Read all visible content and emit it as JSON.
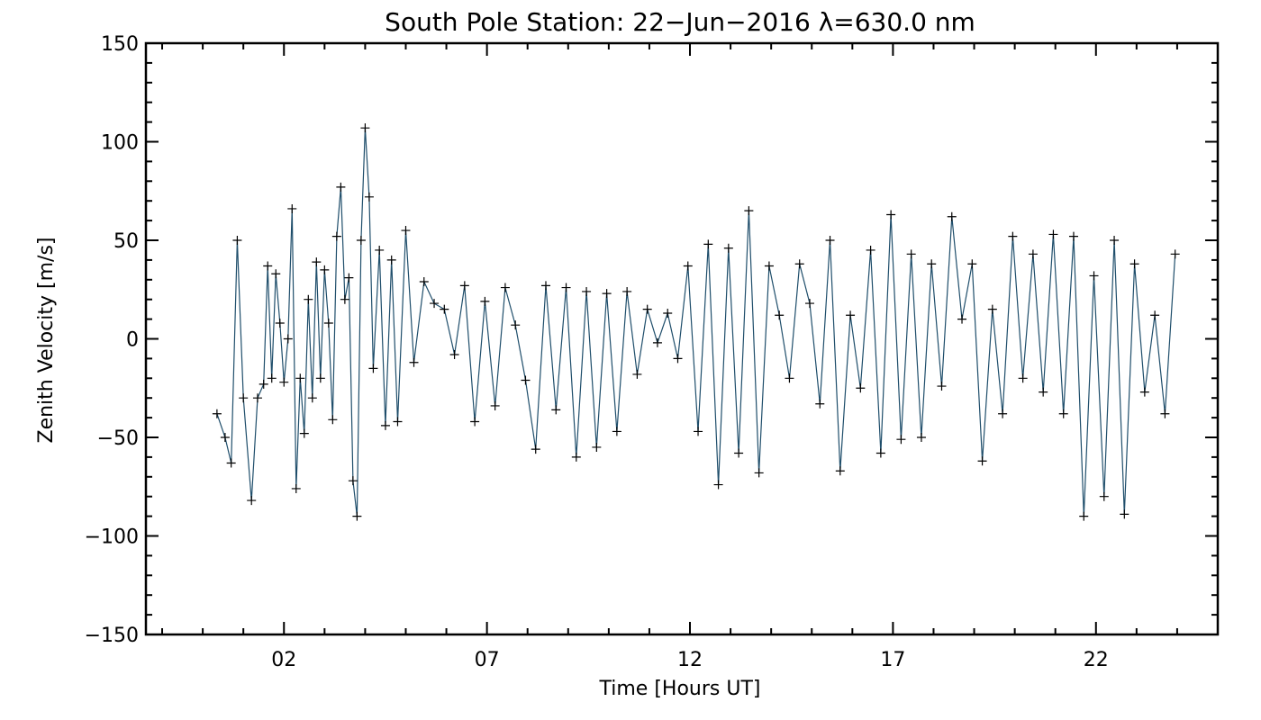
{
  "chart_data": {
    "type": "line",
    "title": "South Pole Station: 22−Jun−2016 λ=630.0 nm",
    "xlabel": "Time [Hours UT]",
    "ylabel": "Zenith Velocity [m/s]",
    "xlim": [
      -1.4,
      25.0
    ],
    "ylim": [
      -150,
      150
    ],
    "x_ticks": [
      2,
      7,
      12,
      17,
      22
    ],
    "x_tick_labels": [
      "02",
      "07",
      "12",
      "17",
      "22"
    ],
    "y_ticks": [
      150,
      100,
      50,
      0,
      -50,
      -100,
      -150
    ],
    "y_tick_labels": [
      "150",
      "100",
      "50",
      "0",
      "−50",
      "−100",
      "−150"
    ],
    "grid": false,
    "marker": "+",
    "colors": {
      "line": "#1f4e6b",
      "marker": "#000000"
    },
    "series": [
      {
        "x": [
          0.35,
          0.55,
          0.7,
          0.85,
          1.0,
          1.2,
          1.35,
          1.5,
          1.6,
          1.7,
          1.8,
          1.9,
          2.0,
          2.1,
          2.2,
          2.3,
          2.4,
          2.5,
          2.6,
          2.7,
          2.8,
          2.9,
          3.0,
          3.1,
          3.2,
          3.3,
          3.4,
          3.5,
          3.6,
          3.7,
          3.8,
          3.9,
          4.0,
          4.1,
          4.2,
          4.35,
          4.5,
          4.65,
          4.8,
          5.0,
          5.2,
          5.45,
          5.7,
          5.95,
          6.2,
          6.45,
          6.7,
          6.95,
          7.2,
          7.45,
          7.7,
          7.95,
          8.2,
          8.45,
          8.7,
          8.95,
          9.2,
          9.45,
          9.7,
          9.95,
          10.2,
          10.45,
          10.7,
          10.95,
          11.2,
          11.45,
          11.7,
          11.95,
          12.2,
          12.45,
          12.7,
          12.95,
          13.2,
          13.45,
          13.7,
          13.95,
          14.2,
          14.45,
          14.7,
          14.95,
          15.2,
          15.45,
          15.7,
          15.95,
          16.2,
          16.45,
          16.7,
          16.95,
          17.2,
          17.45,
          17.7,
          17.95,
          18.2,
          18.45,
          18.7,
          18.95,
          19.2,
          19.45,
          19.7,
          19.95,
          20.2,
          20.45,
          20.7,
          20.95,
          21.2,
          21.45,
          21.7,
          21.95,
          22.2,
          22.45,
          22.7,
          22.95,
          23.2,
          23.45,
          23.7,
          23.95
        ],
        "values": [
          -38,
          -50,
          -63,
          50,
          -30,
          -82,
          -30,
          -23,
          37,
          -20,
          33,
          8,
          -22,
          0,
          66,
          -76,
          -20,
          -48,
          20,
          -30,
          39,
          -20,
          35,
          8,
          -41,
          52,
          77,
          20,
          31,
          -72,
          -90,
          50,
          107,
          72,
          -15,
          45,
          -44,
          40,
          -42,
          55,
          -12,
          29,
          18,
          15,
          -8,
          27,
          -42,
          19,
          -34,
          26,
          7,
          -21,
          -56,
          27,
          -36,
          26,
          -60,
          24,
          -55,
          23,
          -47,
          24,
          -18,
          15,
          -2,
          13,
          -10,
          37,
          -47,
          48,
          -74,
          46,
          -58,
          65,
          -68,
          37,
          12,
          -20,
          38,
          18,
          -33,
          50,
          -67,
          12,
          -25,
          45,
          -58,
          63,
          -51,
          43,
          -50,
          38,
          -24,
          62,
          10,
          38,
          -62,
          15,
          -38,
          52,
          -20,
          43,
          -27,
          53,
          -38,
          52,
          -90,
          32,
          -80,
          50,
          -89,
          38,
          -27,
          12,
          -38,
          43
        ]
      }
    ]
  }
}
